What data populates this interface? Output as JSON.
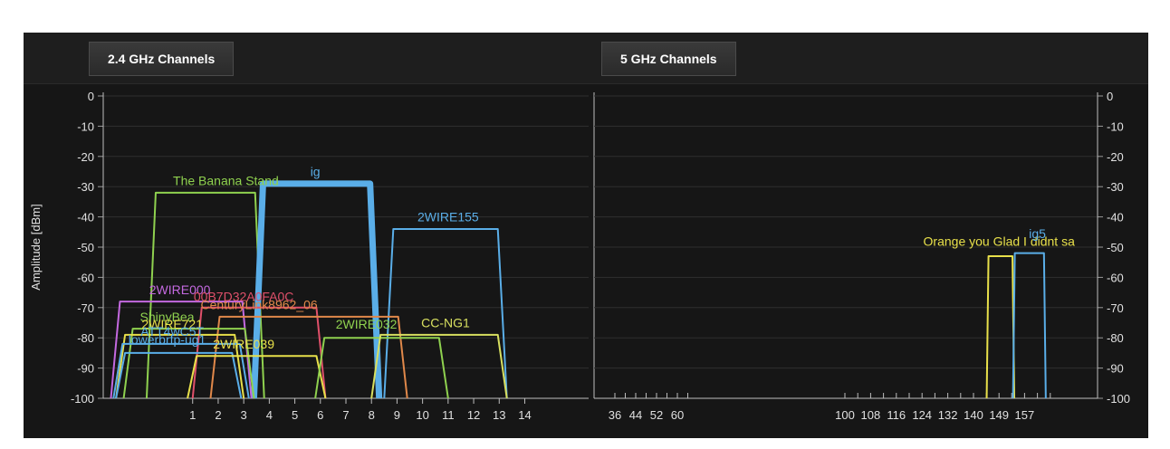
{
  "tabs": {
    "ghz24": "2.4 GHz Channels",
    "ghz5": "5 GHz Channels"
  },
  "chart_data": [
    {
      "type": "area",
      "ylabel": "Amplitude [dBm]",
      "xlabel": "",
      "ylim": [
        -100,
        0
      ],
      "xlim": [
        -2.5,
        16.5
      ],
      "yticks": [
        0,
        -10,
        -20,
        -30,
        -40,
        -50,
        -60,
        -70,
        -80,
        -90,
        -100
      ],
      "xticks": [
        1,
        2,
        3,
        4,
        5,
        6,
        7,
        8,
        9,
        10,
        11,
        12,
        13,
        14
      ],
      "grid": true,
      "series": [
        {
          "name": "The Banana Stand",
          "color": "#8fd14f",
          "channel_low": -0.8,
          "channel_high": 3.8,
          "amplitude": -32,
          "width": 2
        },
        {
          "name": "ig",
          "color": "#5aaee8",
          "channel_low": 3.4,
          "channel_high": 8.3,
          "amplitude": -29,
          "width": 7
        },
        {
          "name": "2WIRE155",
          "color": "#5aaee8",
          "channel_low": 8.5,
          "channel_high": 13.3,
          "amplitude": -44,
          "width": 2
        },
        {
          "name": "2WIRE000",
          "color": "#c469e0",
          "channel_low": -2.2,
          "channel_high": 3.3,
          "amplitude": -68,
          "width": 2
        },
        {
          "name": "",
          "color": "#e0506a",
          "channel_low": 1.0,
          "channel_high": 6.2,
          "amplitude": -70,
          "width": 2
        },
        {
          "name": "",
          "color": "#e0884a",
          "channel_low": 1.7,
          "channel_high": 9.4,
          "amplitude": -73,
          "width": 2
        },
        {
          "name": "ShinyBea",
          "color": "#8fd14f",
          "channel_low": -1.7,
          "channel_high": 3.4,
          "amplitude": -77,
          "width": 2
        },
        {
          "name": "",
          "color": "#e8e04a",
          "channel_low": -2.0,
          "channel_high": 3.0,
          "amplitude": -79,
          "width": 2
        },
        {
          "name": "",
          "color": "#5aaee8",
          "channel_low": -2.1,
          "channel_high": 3.2,
          "amplitude": -82,
          "width": 2
        },
        {
          "name": "",
          "color": "#5aaee8",
          "channel_low": -2.0,
          "channel_high": 2.9,
          "amplitude": -85,
          "width": 2
        },
        {
          "name": "",
          "color": "#e8e04a",
          "channel_low": 0.8,
          "channel_high": 6.2,
          "amplitude": -86,
          "width": 2
        },
        {
          "name": "2WIRE032",
          "color": "#8fd14f",
          "channel_low": 5.8,
          "channel_high": 11.0,
          "amplitude": -80,
          "width": 2
        },
        {
          "name": "CC-NG1",
          "color": "#d8e060",
          "channel_low": 8.0,
          "channel_high": 13.3,
          "amplitude": -79,
          "width": 2
        }
      ],
      "labels": [
        {
          "text": "The Banana Stand",
          "color": "#8fd14f",
          "channel": 2.3,
          "amplitude": -29.5
        },
        {
          "text": "ig",
          "color": "#5aaee8",
          "channel": 5.8,
          "amplitude": -26.5
        },
        {
          "text": "2WIRE155",
          "color": "#5aaee8",
          "channel": 11.0,
          "amplitude": -41.5
        },
        {
          "text": "2WIRE000",
          "color": "#c469e0",
          "channel": 0.5,
          "amplitude": -65.5
        },
        {
          "text": "00B7D32A0FA0C",
          "color": "#e0506a",
          "channel": 3.0,
          "amplitude": -67.8
        },
        {
          "text": "CenturyLink8962_06",
          "color": "#e0884a",
          "channel": 3.6,
          "amplitude": -70.5
        },
        {
          "text": "ShinyBea",
          "color": "#8fd14f",
          "channel": 0.0,
          "amplitude": -74.5
        },
        {
          "text": "2WIRE721",
          "color": "#e8e04a",
          "channel": 0.2,
          "amplitude": -77.0
        },
        {
          "text": "ATT4wC5T",
          "color": "#5aaee8",
          "channel": 0.2,
          "amplitude": -79.3
        },
        {
          "text": "lowerbrfp-ug1",
          "color": "#5aaee8",
          "channel": 0.0,
          "amplitude": -82.0
        },
        {
          "text": "2WIRE039",
          "color": "#e8e04a",
          "channel": 3.0,
          "amplitude": -83.5
        },
        {
          "text": "2WIRE032",
          "color": "#8fd14f",
          "channel": 7.8,
          "amplitude": -77.0
        },
        {
          "text": "CC-NG1",
          "color": "#d8e060",
          "channel": 10.9,
          "amplitude": -76.5
        }
      ]
    },
    {
      "type": "area",
      "ylabel": "",
      "xlabel": "",
      "ylim": [
        -100,
        0
      ],
      "yticks": [
        0,
        -10,
        -20,
        -30,
        -40,
        -50,
        -60,
        -70,
        -80,
        -90,
        -100
      ],
      "xticks": [
        36,
        40,
        44,
        48,
        52,
        56,
        60,
        64,
        100,
        104,
        108,
        112,
        116,
        120,
        124,
        128,
        132,
        136,
        140,
        144,
        149,
        153,
        157,
        161,
        165
      ],
      "xtick_labels": [
        "36",
        "44",
        "52",
        "60",
        "100",
        "108",
        "116",
        "124",
        "132",
        "140",
        "149",
        "157"
      ],
      "grid": true,
      "series": [
        {
          "name": "Orange you Glad I didnt sa",
          "color": "#e8e04a",
          "channel_low": 144.2,
          "channel_high": 153.8,
          "amplitude": -53,
          "width": 2
        },
        {
          "name": "ig5",
          "color": "#5aaee8",
          "channel_low": 153.4,
          "channel_high": 163.6,
          "amplitude": -52,
          "width": 2
        }
      ],
      "labels": [
        {
          "text": "Orange you Glad I didnt sa",
          "color": "#e8e04a",
          "channel": 149,
          "amplitude": -49.5
        },
        {
          "text": "ig5",
          "color": "#5aaee8",
          "channel": 161.0,
          "amplitude": -47.0
        }
      ]
    }
  ]
}
